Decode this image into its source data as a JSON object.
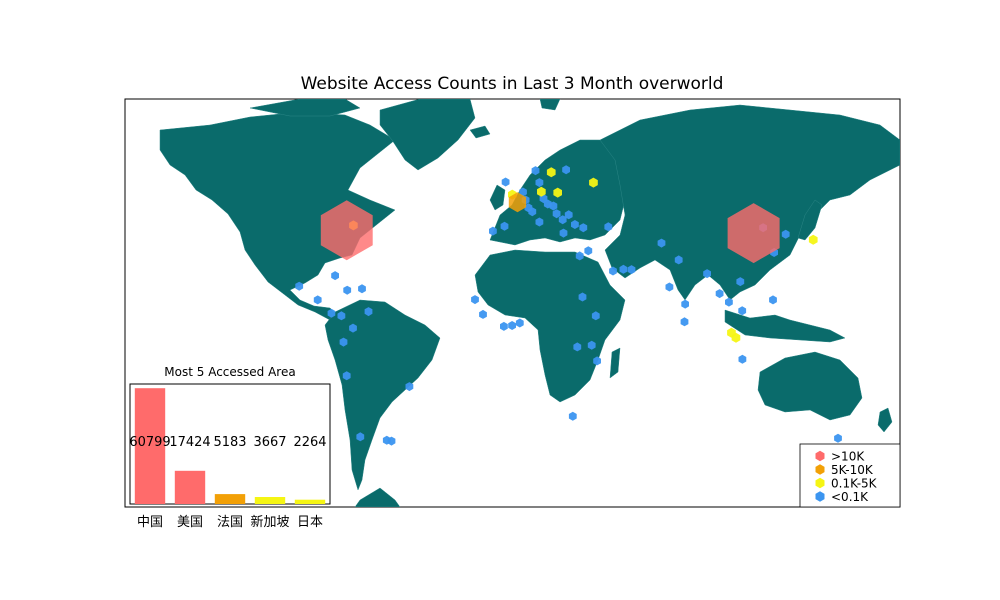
{
  "title": "Website Access Counts in Last 3 Month overworld",
  "colors": {
    "land": "#0a6b6b",
    "ocean": "#ffffff",
    "hex_high": "#ff6b6b",
    "hex_mid": "#f2a007",
    "hex_low": "#f5f514",
    "hex_tiny": "#3b95f0"
  },
  "legend": {
    "position": "bottom-right",
    "items": [
      {
        "label": ">10K",
        "color": "#ff6b6b"
      },
      {
        "label": "5K-10K",
        "color": "#f2a007"
      },
      {
        "label": "0.1K-5K",
        "color": "#f5f514"
      },
      {
        "label": "<0.1K",
        "color": "#3b95f0"
      }
    ]
  },
  "chart_data": [
    {
      "type": "scatter",
      "title": "Website Access Counts in Last 3 Month overworld",
      "xlim": [
        -180,
        180
      ],
      "ylim": [
        -90,
        90
      ],
      "points": [
        {
          "lon": 112,
          "lat": 38,
          "level": ">10K"
        },
        {
          "lon": -77,
          "lat": 39,
          "level": ">10K"
        },
        {
          "lon": 2.3,
          "lat": 48.8,
          "level": "5K-10K"
        },
        {
          "lon": 103.8,
          "lat": 1.3,
          "level": "0.1K-5K"
        },
        {
          "lon": 139.7,
          "lat": 35.7,
          "level": "0.1K-5K"
        },
        {
          "lon": -73.9,
          "lat": 40.7,
          "level": "0.1K-5K"
        },
        {
          "lon": -0.1,
          "lat": 51.5,
          "level": "0.1K-5K"
        },
        {
          "lon": 18,
          "lat": 59.3,
          "level": "0.1K-5K"
        },
        {
          "lon": 37.6,
          "lat": 55.7,
          "level": "0.1K-5K"
        },
        {
          "lon": 21,
          "lat": 52.2,
          "level": "0.1K-5K"
        },
        {
          "lon": 13.4,
          "lat": 52.5,
          "level": "0.1K-5K"
        },
        {
          "lon": 101.7,
          "lat": 3.1,
          "level": "0.1K-5K"
        },
        {
          "lon": 12.5,
          "lat": 55.7,
          "level": "<0.1K"
        },
        {
          "lon": 10.7,
          "lat": 59.9,
          "level": "<0.1K"
        },
        {
          "lon": 24.9,
          "lat": 60.2,
          "level": "<0.1K"
        },
        {
          "lon": 4.9,
          "lat": 52.4,
          "level": "<0.1K"
        },
        {
          "lon": 6.1,
          "lat": 49.6,
          "level": "<0.1K"
        },
        {
          "lon": 16.4,
          "lat": 48.2,
          "level": "<0.1K"
        },
        {
          "lon": 19,
          "lat": 47.5,
          "level": "<0.1K"
        },
        {
          "lon": 14.4,
          "lat": 50.1,
          "level": "<0.1K"
        },
        {
          "lon": 26.1,
          "lat": 44.4,
          "level": "<0.1K"
        },
        {
          "lon": 23.3,
          "lat": 42.7,
          "level": "<0.1K"
        },
        {
          "lon": 20.5,
          "lat": 44.8,
          "level": "<0.1K"
        },
        {
          "lon": 12.5,
          "lat": 41.9,
          "level": "<0.1K"
        },
        {
          "lon": 9.2,
          "lat": 45.5,
          "level": "<0.1K"
        },
        {
          "lon": -3.7,
          "lat": 40.4,
          "level": "<0.1K"
        },
        {
          "lon": -9.1,
          "lat": 38.7,
          "level": "<0.1K"
        },
        {
          "lon": 23.7,
          "lat": 38,
          "level": "<0.1K"
        },
        {
          "lon": 29,
          "lat": 41,
          "level": "<0.1K"
        },
        {
          "lon": 32.9,
          "lat": 39.9,
          "level": "<0.1K"
        },
        {
          "lon": 44.5,
          "lat": 40.2,
          "level": "<0.1K"
        },
        {
          "lon": 35.2,
          "lat": 31.8,
          "level": "<0.1K"
        },
        {
          "lon": 46.7,
          "lat": 24.7,
          "level": "<0.1K"
        },
        {
          "lon": 55.3,
          "lat": 25.2,
          "level": "<0.1K"
        },
        {
          "lon": 51.5,
          "lat": 25.3,
          "level": "<0.1K"
        },
        {
          "lon": 69.2,
          "lat": 34.5,
          "level": "<0.1K"
        },
        {
          "lon": 77.2,
          "lat": 28.6,
          "level": "<0.1K"
        },
        {
          "lon": 72.9,
          "lat": 19.1,
          "level": "<0.1K"
        },
        {
          "lon": 80.2,
          "lat": 13.1,
          "level": "<0.1K"
        },
        {
          "lon": 79.9,
          "lat": 6.9,
          "level": "<0.1K"
        },
        {
          "lon": 90.4,
          "lat": 23.8,
          "level": "<0.1K"
        },
        {
          "lon": 100.5,
          "lat": 13.8,
          "level": "<0.1K"
        },
        {
          "lon": 106.7,
          "lat": 10.8,
          "level": "<0.1K"
        },
        {
          "lon": 105.8,
          "lat": 21,
          "level": "<0.1K"
        },
        {
          "lon": 96.2,
          "lat": 16.8,
          "level": "<0.1K"
        },
        {
          "lon": 121,
          "lat": 14.6,
          "level": "<0.1K"
        },
        {
          "lon": 106.8,
          "lat": -6.2,
          "level": "<0.1K"
        },
        {
          "lon": 116.4,
          "lat": 39.9,
          "level": "<0.1K"
        },
        {
          "lon": 121.5,
          "lat": 31.2,
          "level": "<0.1K"
        },
        {
          "lon": 126.9,
          "lat": 37.6,
          "level": "<0.1K"
        },
        {
          "lon": 151.2,
          "lat": -33.9,
          "level": "<0.1K"
        },
        {
          "lon": 174.8,
          "lat": -41.3,
          "level": "<0.1K"
        },
        {
          "lon": -99.1,
          "lat": 19.4,
          "level": "<0.1K"
        },
        {
          "lon": -90.5,
          "lat": 14.6,
          "level": "<0.1K"
        },
        {
          "lon": -84.1,
          "lat": 9.9,
          "level": "<0.1K"
        },
        {
          "lon": -79.5,
          "lat": 9,
          "level": "<0.1K"
        },
        {
          "lon": -74.1,
          "lat": 4.7,
          "level": "<0.1K"
        },
        {
          "lon": -66.9,
          "lat": 10.5,
          "level": "<0.1K"
        },
        {
          "lon": -78.5,
          "lat": -0.2,
          "level": "<0.1K"
        },
        {
          "lon": -77,
          "lat": -12,
          "level": "<0.1K"
        },
        {
          "lon": -70.7,
          "lat": -33.4,
          "level": "<0.1K"
        },
        {
          "lon": -58.4,
          "lat": -34.6,
          "level": "<0.1K"
        },
        {
          "lon": -56.2,
          "lat": -34.9,
          "level": "<0.1K"
        },
        {
          "lon": -47.9,
          "lat": -15.8,
          "level": "<0.1K"
        },
        {
          "lon": -76.8,
          "lat": 18,
          "level": "<0.1K"
        },
        {
          "lon": -69.9,
          "lat": 18.5,
          "level": "<0.1K"
        },
        {
          "lon": -82.4,
          "lat": 23.1,
          "level": "<0.1K"
        },
        {
          "lon": -17.4,
          "lat": 14.7,
          "level": "<0.1K"
        },
        {
          "lon": -13.7,
          "lat": 9.5,
          "level": "<0.1K"
        },
        {
          "lon": -4,
          "lat": 5.3,
          "level": "<0.1K"
        },
        {
          "lon": -0.2,
          "lat": 5.6,
          "level": "<0.1K"
        },
        {
          "lon": 3.4,
          "lat": 6.5,
          "level": "<0.1K"
        },
        {
          "lon": 31.2,
          "lat": 30,
          "level": "<0.1K"
        },
        {
          "lon": 32.5,
          "lat": 15.6,
          "level": "<0.1K"
        },
        {
          "lon": 38.7,
          "lat": 9,
          "level": "<0.1K"
        },
        {
          "lon": 36.8,
          "lat": -1.3,
          "level": "<0.1K"
        },
        {
          "lon": 39.3,
          "lat": -6.8,
          "level": "<0.1K"
        },
        {
          "lon": 28,
          "lat": -26.2,
          "level": "<0.1K"
        },
        {
          "lon": 30.1,
          "lat": -1.9,
          "level": "<0.1K"
        },
        {
          "lon": -3.2,
          "lat": 55.9,
          "level": "<0.1K"
        },
        {
          "lon": 7.4,
          "lat": 46.9,
          "level": "<0.1K"
        }
      ]
    },
    {
      "type": "bar",
      "title": "Most 5 Accessed Area",
      "categories": [
        "中国",
        "美国",
        "法国",
        "新加坡",
        "日本"
      ],
      "values": [
        60799,
        17424,
        5183,
        3667,
        2264
      ],
      "colors": [
        "#ff6b6b",
        "#ff6b6b",
        "#f2a007",
        "#f5f514",
        "#f5f514"
      ],
      "ylim": [
        0,
        63000
      ]
    }
  ]
}
